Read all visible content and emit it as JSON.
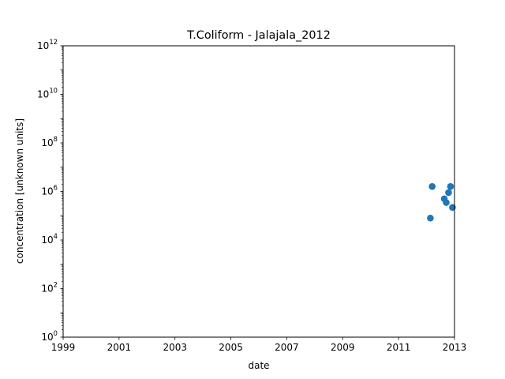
{
  "chart_data": {
    "type": "scatter",
    "title": "T.Coliform - Jalajala_2012",
    "xlabel": "date",
    "ylabel": "concentration [unknown units]",
    "x_axis": {
      "type": "date",
      "range": [
        "1999-01-01",
        "2013-01-01"
      ],
      "ticks": [
        "1999",
        "2001",
        "2003",
        "2005",
        "2007",
        "2009",
        "2011",
        "2013"
      ]
    },
    "y_axis": {
      "scale": "log",
      "range": [
        1,
        1000000000000
      ],
      "tick_base": "10",
      "tick_exponents": [
        "0",
        "2",
        "4",
        "6",
        "8",
        "10",
        "12"
      ]
    },
    "grid": false,
    "legend": false,
    "marker_color": "#1f77b4",
    "series": [
      {
        "x": [
          "2012-02-20",
          "2012-03-15",
          "2012-08-20",
          "2012-09-15",
          "2012-10-15",
          "2012-11-10",
          "2012-12-05"
        ],
        "y": [
          80000,
          1600000,
          500000,
          350000,
          900000,
          1600000,
          220000
        ]
      }
    ]
  }
}
